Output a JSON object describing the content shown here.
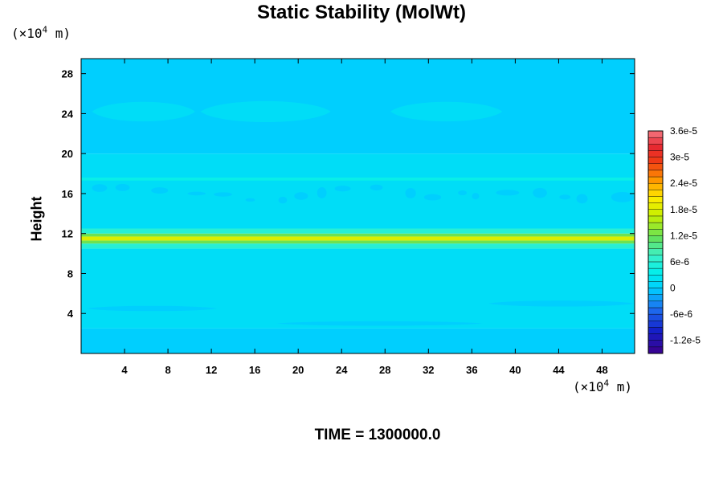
{
  "chart_data": {
    "type": "heatmap",
    "title": "Static Stability (MolWt)",
    "ylabel": "Height",
    "y_unit": {
      "prefix": "(×10",
      "exponent": "4",
      "suffix": " m)"
    },
    "x_unit": {
      "prefix": "(×10",
      "exponent": "4",
      "suffix": " m)"
    },
    "x_ticks": [
      "4",
      "8",
      "12",
      "16",
      "20",
      "24",
      "28",
      "32",
      "36",
      "40",
      "44",
      "48"
    ],
    "y_ticks": [
      "4",
      "8",
      "12",
      "16",
      "20",
      "24",
      "28"
    ],
    "xlim": [
      0,
      51
    ],
    "ylim": [
      0,
      29.5
    ],
    "footer": "TIME = 1300000.0",
    "colorbar": {
      "labels": [
        "3.6e-5",
        "3e-5",
        "2.4e-5",
        "1.8e-5",
        "1.2e-5",
        "6e-6",
        "0",
        "-6e-6",
        "-1.2e-5"
      ],
      "label_values": [
        3.6e-05,
        3e-05,
        2.4e-05,
        1.8e-05,
        1.2e-05,
        6e-06,
        0,
        -6e-06,
        -1.2e-05
      ],
      "range": [
        -1.5e-05,
        3.6e-05
      ]
    },
    "bands": [
      {
        "y_range": [
          0.0,
          2.5
        ],
        "value": 0
      },
      {
        "y_range": [
          2.5,
          10.5
        ],
        "value": 1.5e-06
      },
      {
        "y_range": [
          10.5,
          11.0
        ],
        "value": 6e-06
      },
      {
        "y_range": [
          11.0,
          11.3
        ],
        "value": 1.2e-05
      },
      {
        "y_range": [
          11.3,
          11.7
        ],
        "value": 1.8e-05
      },
      {
        "y_range": [
          11.7,
          12.0
        ],
        "value": 1.2e-05
      },
      {
        "y_range": [
          12.0,
          12.5
        ],
        "value": 6e-06
      },
      {
        "y_range": [
          12.5,
          20.0
        ],
        "value": 1.5e-06
      },
      {
        "y_range": [
          17.3,
          17.6
        ],
        "value": 4e-06
      },
      {
        "y_range": [
          20.0,
          29.5
        ],
        "value": 0
      }
    ],
    "blobs": [
      {
        "x_range": [
          1.0,
          10.5
        ],
        "y_center": 24.2,
        "half_height": 1.3,
        "value": 1.5e-06
      },
      {
        "x_range": [
          11.0,
          23.0
        ],
        "y_center": 24.2,
        "half_height": 1.4,
        "value": 1.5e-06
      },
      {
        "x_range": [
          28.5,
          38.8
        ],
        "y_center": 24.2,
        "half_height": 1.3,
        "value": 1.5e-06
      },
      {
        "x_range": [
          0.5,
          12.5
        ],
        "y_center": 4.5,
        "half_height": 0.35,
        "value": 0
      },
      {
        "x_range": [
          18.0,
          37.0
        ],
        "y_center": 3.0,
        "half_height": 0.3,
        "value": 0
      },
      {
        "x_range": [
          37.5,
          51.0
        ],
        "y_center": 5.0,
        "half_height": 0.4,
        "value": 0
      },
      {
        "x_range": [
          1.0,
          51.0
        ],
        "y_center": 16.0,
        "half_height": 1.2,
        "value": 0,
        "patchy": true
      }
    ]
  }
}
